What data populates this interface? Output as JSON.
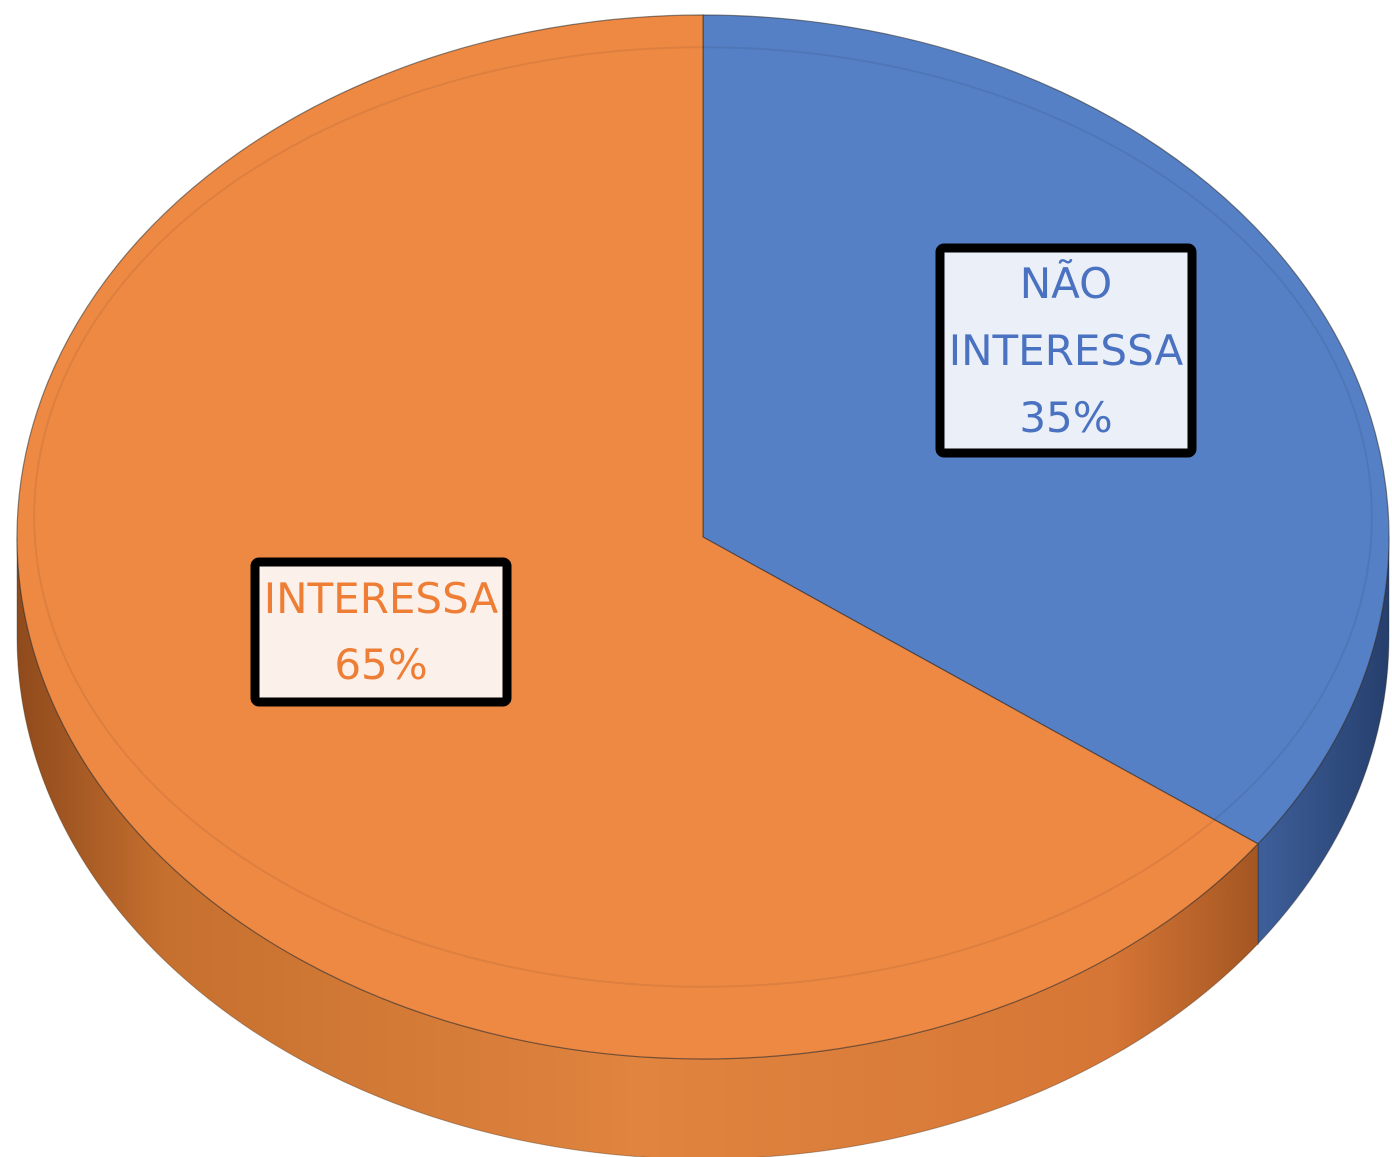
{
  "chart_data": {
    "type": "pie",
    "style": "3d",
    "title": "",
    "categories": [
      "NÃO INTERESSA",
      "INTERESSA"
    ],
    "values": [
      35,
      65
    ],
    "unit": "%",
    "colors": [
      "#5680c6",
      "#ee8944"
    ],
    "legend": "none",
    "slices": [
      {
        "label_lines": [
          "NÃO",
          "INTERESSA"
        ],
        "percent_label": "35%",
        "value": 35,
        "color": "#5680c6"
      },
      {
        "label_lines": [
          "INTERESSA"
        ],
        "percent_label": "65%",
        "value": 65,
        "color": "#ee8944"
      }
    ]
  }
}
